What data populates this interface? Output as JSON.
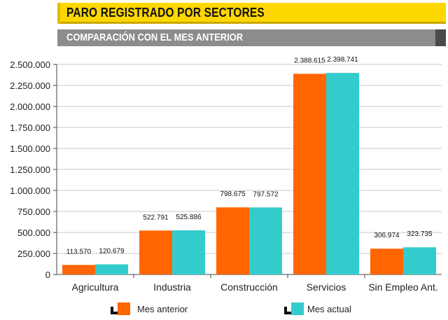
{
  "header": {
    "title": "PARO REGISTRADO POR SECTORES",
    "subtitle": "COMPARACIÓN CON EL MES ANTERIOR"
  },
  "chart_data": {
    "type": "bar",
    "categories": [
      "Agricultura",
      "Industria",
      "Construcción",
      "Servicios",
      "Sin Empleo Ant."
    ],
    "series": [
      {
        "name": "Mes anterior",
        "color": "#ff6600",
        "values": [
          113570,
          522791,
          798675,
          2388615,
          306974
        ],
        "labels": [
          "113.570",
          "522.791",
          "798.675",
          "2.388.615",
          "306.974"
        ]
      },
      {
        "name": "Mes actual",
        "color": "#33cccc",
        "values": [
          120679,
          525886,
          797572,
          2398741,
          323735
        ],
        "labels": [
          "120.679",
          "525.886",
          "797.572",
          "2.398.741",
          "323.735"
        ]
      }
    ],
    "ylim": [
      0,
      2500000
    ],
    "yticks": [
      0,
      250000,
      500000,
      750000,
      1000000,
      1250000,
      1500000,
      1750000,
      2000000,
      2250000,
      2500000
    ],
    "ytick_labels": [
      "0",
      "250.000",
      "500.000",
      "750.000",
      "1.000.000",
      "1.250.000",
      "1.500.000",
      "1.750.000",
      "2.000.000",
      "2.250.000",
      "2.500.000"
    ],
    "grid": true,
    "legend_position": "bottom"
  }
}
